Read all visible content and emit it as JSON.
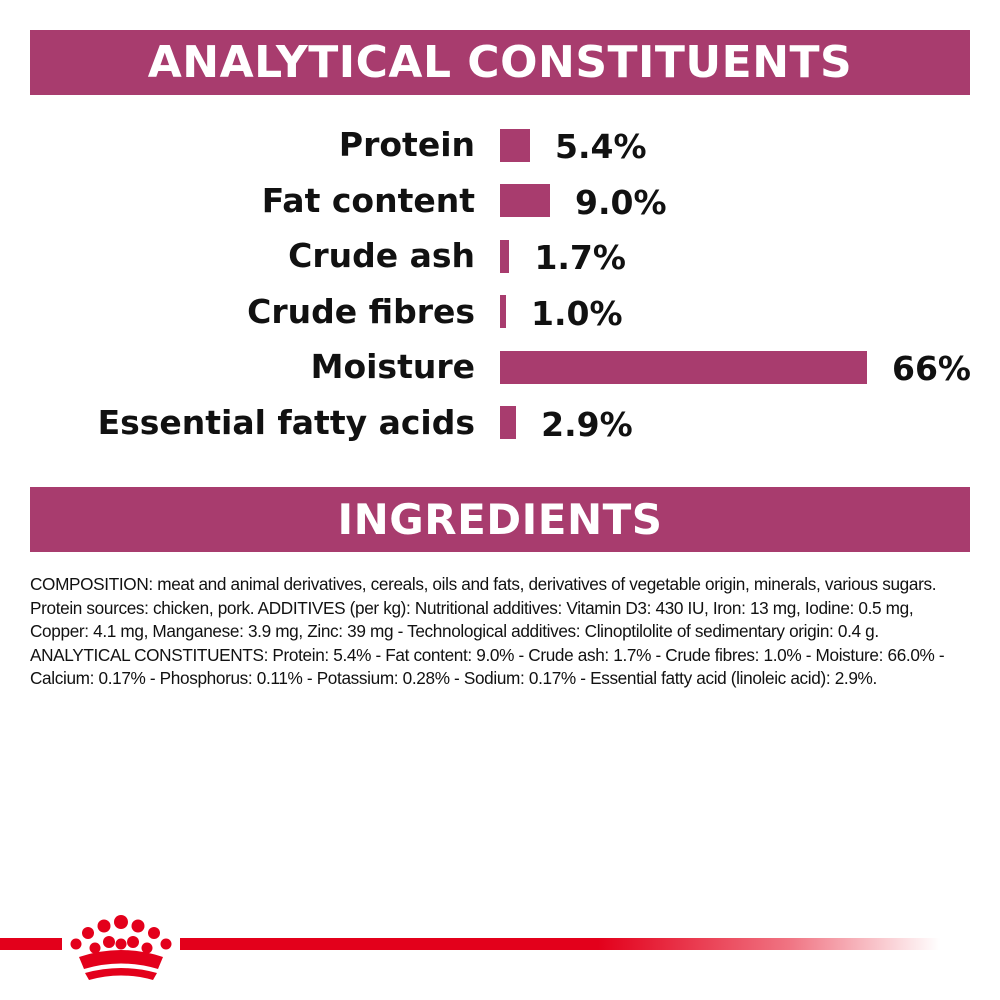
{
  "colors": {
    "accent": "#a83c6e",
    "brand_red": "#e3001b"
  },
  "sections": {
    "analytical_title": "ANALYTICAL CONSTITUENTS",
    "ingredients_title": "INGREDIENTS"
  },
  "chart_data": {
    "type": "bar",
    "orientation": "horizontal",
    "categories": [
      "Protein",
      "Fat content",
      "Crude ash",
      "Crude fibres",
      "Moisture",
      "Essential fatty acids"
    ],
    "values": [
      5.4,
      9.0,
      1.7,
      1.0,
      66,
      2.9
    ],
    "value_labels": [
      "5.4%",
      "9.0%",
      "1.7%",
      "1.0%",
      "66%",
      "2.9%"
    ],
    "unit": "%",
    "xlim": [
      0,
      66
    ],
    "grid": false,
    "legend": "none"
  },
  "composition_text": "COMPOSITION: meat and animal derivatives, cereals, oils and fats, derivatives of vegetable origin, minerals, various sugars. Protein sources: chicken, pork. ADDITIVES (per kg): Nutritional additives: Vitamin D3: 430 IU, Iron: 13 mg, Iodine: 0.5 mg, Copper: 4.1 mg, Manganese: 3.9 mg, Zinc: 39 mg - Technological additives: Clinoptilolite of sedimentary origin: 0.4 g. ANALYTICAL CONSTITUENTS: Protein: 5.4% - Fat content: 9.0% - Crude ash: 1.7% - Crude fibres: 1.0% - Moisture: 66.0% - Calcium: 0.17% - Phosphorus: 0.11% - Potassium: 0.28% - Sodium: 0.17% - Essential fatty acid (linoleic acid): 2.9%.",
  "footer": {
    "logo_icon": "crown-icon"
  }
}
